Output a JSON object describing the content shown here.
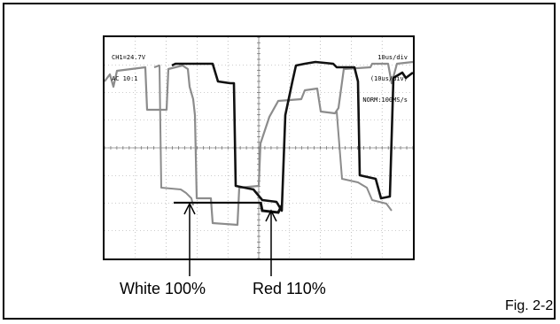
{
  "scope": {
    "readout_left": [
      "CH1=24.7V",
      "AC 10:1"
    ],
    "readout_right": [
      "10us/div",
      "(10us/div)",
      "NORM:100MS/s"
    ]
  },
  "labels": {
    "white": "White 100%",
    "red": "Red 110%"
  },
  "figure_caption": "Fig. 2-2",
  "colors": {
    "trace_light": "#8c8c8c",
    "trace_dark": "#111111",
    "grid": "#9a9a9a"
  }
}
